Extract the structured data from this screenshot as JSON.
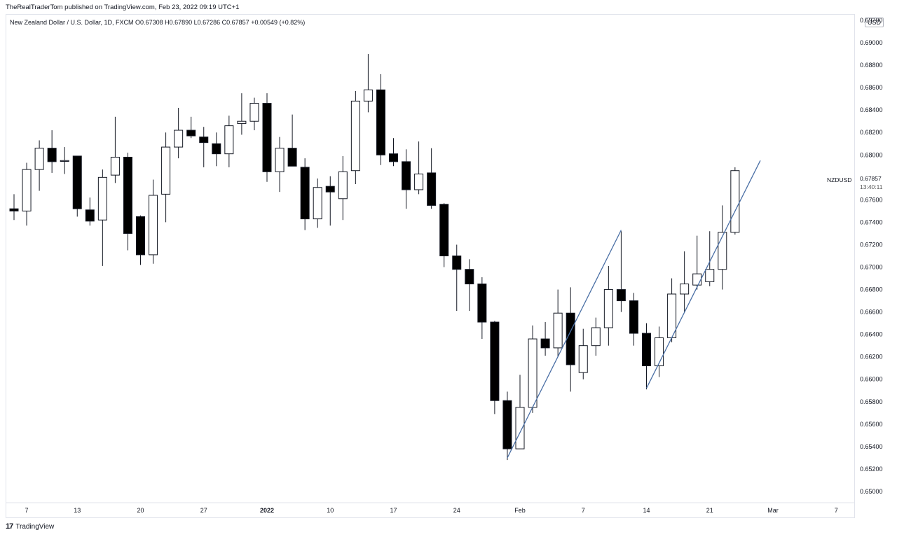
{
  "header": {
    "publisher": "TheRealTraderTom published on TradingView.com, Feb 23, 2022 09:19 UTC+1"
  },
  "legend": {
    "text": "New Zealand Dollar / U.S. Dollar, 1D, FXCM  O0.67308  H0.67890  L0.67286  C0.67857  +0.00549 (+0.82%)"
  },
  "price_axis": {
    "currency": "USD",
    "symbol": "NZDUSD",
    "last_price": "0.67857",
    "countdown": "13:40:11"
  },
  "footer": {
    "brand": "TradingView",
    "mark": "17"
  },
  "colors": {
    "up_fill": "#ffffff",
    "down_fill": "#000000",
    "wick": "#131722",
    "trendline": "#4a6fa5"
  },
  "chart_data": {
    "type": "candlestick",
    "symbol": "NZDUSD",
    "interval": "1D",
    "ylim": [
      0.649,
      0.6925
    ],
    "y_ticks": [
      "0.69200",
      "0.69000",
      "0.68800",
      "0.68600",
      "0.68400",
      "0.68200",
      "0.68000",
      "0.67600",
      "0.67400",
      "0.67200",
      "0.67000",
      "0.66800",
      "0.66600",
      "0.66400",
      "0.66200",
      "0.66000",
      "0.65800",
      "0.65600",
      "0.65400",
      "0.65200",
      "0.65000"
    ],
    "x_ticks": [
      {
        "label": "7",
        "date": "2021-12-07"
      },
      {
        "label": "13",
        "date": "2021-12-13"
      },
      {
        "label": "20",
        "date": "2021-12-20"
      },
      {
        "label": "27",
        "date": "2021-12-27"
      },
      {
        "label": "2022",
        "date": "2022-01-03",
        "bold": true
      },
      {
        "label": "10",
        "date": "2022-01-10"
      },
      {
        "label": "17",
        "date": "2022-01-17"
      },
      {
        "label": "24",
        "date": "2022-01-24"
      },
      {
        "label": "Feb",
        "date": "2022-01-31"
      },
      {
        "label": "7",
        "date": "2022-02-07"
      },
      {
        "label": "14",
        "date": "2022-02-14"
      },
      {
        "label": "21",
        "date": "2022-02-21"
      },
      {
        "label": "Mar",
        "date": "2022-02-28"
      },
      {
        "label": "7",
        "date": "2022-03-07"
      }
    ],
    "candles": [
      {
        "date": "2021-12-06",
        "o": 0.6752,
        "h": 0.6765,
        "l": 0.6742,
        "c": 0.675
      },
      {
        "date": "2021-12-07",
        "o": 0.675,
        "h": 0.6793,
        "l": 0.6737,
        "c": 0.6787
      },
      {
        "date": "2021-12-08",
        "o": 0.6787,
        "h": 0.6813,
        "l": 0.6768,
        "c": 0.6806
      },
      {
        "date": "2021-12-09",
        "o": 0.6806,
        "h": 0.6822,
        "l": 0.6784,
        "c": 0.6794
      },
      {
        "date": "2021-12-10",
        "o": 0.6795,
        "h": 0.6807,
        "l": 0.6783,
        "c": 0.6795
      },
      {
        "date": "2021-12-13",
        "o": 0.6799,
        "h": 0.6799,
        "l": 0.6745,
        "c": 0.6752
      },
      {
        "date": "2021-12-14",
        "o": 0.6751,
        "h": 0.6762,
        "l": 0.6737,
        "c": 0.6741
      },
      {
        "date": "2021-12-15",
        "o": 0.6742,
        "h": 0.6787,
        "l": 0.6701,
        "c": 0.678
      },
      {
        "date": "2021-12-16",
        "o": 0.6782,
        "h": 0.6834,
        "l": 0.6775,
        "c": 0.6798
      },
      {
        "date": "2021-12-17",
        "o": 0.6798,
        "h": 0.6802,
        "l": 0.6715,
        "c": 0.673
      },
      {
        "date": "2021-12-20",
        "o": 0.6745,
        "h": 0.6746,
        "l": 0.6702,
        "c": 0.6711
      },
      {
        "date": "2021-12-21",
        "o": 0.6711,
        "h": 0.6778,
        "l": 0.6703,
        "c": 0.6764
      },
      {
        "date": "2021-12-22",
        "o": 0.6765,
        "h": 0.682,
        "l": 0.674,
        "c": 0.6807
      },
      {
        "date": "2021-12-23",
        "o": 0.6807,
        "h": 0.6842,
        "l": 0.6797,
        "c": 0.6822
      },
      {
        "date": "2021-12-24",
        "o": 0.6822,
        "h": 0.6834,
        "l": 0.6815,
        "c": 0.6817
      },
      {
        "date": "2021-12-27",
        "o": 0.6816,
        "h": 0.6825,
        "l": 0.6789,
        "c": 0.6811
      },
      {
        "date": "2021-12-28",
        "o": 0.681,
        "h": 0.682,
        "l": 0.679,
        "c": 0.6801
      },
      {
        "date": "2021-12-29",
        "o": 0.6801,
        "h": 0.6835,
        "l": 0.6789,
        "c": 0.6826
      },
      {
        "date": "2021-12-30",
        "o": 0.6828,
        "h": 0.6855,
        "l": 0.6818,
        "c": 0.683
      },
      {
        "date": "2021-12-31",
        "o": 0.683,
        "h": 0.6851,
        "l": 0.6822,
        "c": 0.6846
      },
      {
        "date": "2022-01-03",
        "o": 0.6846,
        "h": 0.6855,
        "l": 0.6776,
        "c": 0.6785
      },
      {
        "date": "2022-01-04",
        "o": 0.6785,
        "h": 0.6816,
        "l": 0.6767,
        "c": 0.6806
      },
      {
        "date": "2022-01-05",
        "o": 0.6806,
        "h": 0.6836,
        "l": 0.679,
        "c": 0.679
      },
      {
        "date": "2022-01-06",
        "o": 0.6789,
        "h": 0.6797,
        "l": 0.6733,
        "c": 0.6743
      },
      {
        "date": "2022-01-07",
        "o": 0.6743,
        "h": 0.6779,
        "l": 0.6735,
        "c": 0.6771
      },
      {
        "date": "2022-01-10",
        "o": 0.6772,
        "h": 0.6781,
        "l": 0.6737,
        "c": 0.6767
      },
      {
        "date": "2022-01-11",
        "o": 0.6761,
        "h": 0.6799,
        "l": 0.6742,
        "c": 0.6785
      },
      {
        "date": "2022-01-12",
        "o": 0.6786,
        "h": 0.6857,
        "l": 0.6774,
        "c": 0.6848
      },
      {
        "date": "2022-01-13",
        "o": 0.6848,
        "h": 0.689,
        "l": 0.6838,
        "c": 0.6858
      },
      {
        "date": "2022-01-14",
        "o": 0.6858,
        "h": 0.6872,
        "l": 0.6791,
        "c": 0.68
      },
      {
        "date": "2022-01-17",
        "o": 0.6801,
        "h": 0.6815,
        "l": 0.679,
        "c": 0.6794
      },
      {
        "date": "2022-01-18",
        "o": 0.6794,
        "h": 0.6805,
        "l": 0.6752,
        "c": 0.6769
      },
      {
        "date": "2022-01-19",
        "o": 0.6769,
        "h": 0.6812,
        "l": 0.6765,
        "c": 0.6783
      },
      {
        "date": "2022-01-20",
        "o": 0.6784,
        "h": 0.6806,
        "l": 0.6752,
        "c": 0.6755
      },
      {
        "date": "2022-01-21",
        "o": 0.6756,
        "h": 0.6757,
        "l": 0.67,
        "c": 0.671
      },
      {
        "date": "2022-01-24",
        "o": 0.671,
        "h": 0.672,
        "l": 0.6661,
        "c": 0.6698
      },
      {
        "date": "2022-01-25",
        "o": 0.6698,
        "h": 0.6707,
        "l": 0.6661,
        "c": 0.6685
      },
      {
        "date": "2022-01-26",
        "o": 0.6685,
        "h": 0.6691,
        "l": 0.6636,
        "c": 0.6651
      },
      {
        "date": "2022-01-27",
        "o": 0.6651,
        "h": 0.6652,
        "l": 0.6569,
        "c": 0.6581
      },
      {
        "date": "2022-01-28",
        "o": 0.6581,
        "h": 0.6589,
        "l": 0.6528,
        "c": 0.6538
      },
      {
        "date": "2022-01-31",
        "o": 0.6538,
        "h": 0.6604,
        "l": 0.6538,
        "c": 0.6575
      },
      {
        "date": "2022-02-01",
        "o": 0.6575,
        "h": 0.6648,
        "l": 0.657,
        "c": 0.6636
      },
      {
        "date": "2022-02-02",
        "o": 0.6636,
        "h": 0.6651,
        "l": 0.6621,
        "c": 0.6628
      },
      {
        "date": "2022-02-03",
        "o": 0.6628,
        "h": 0.668,
        "l": 0.662,
        "c": 0.6659
      },
      {
        "date": "2022-02-04",
        "o": 0.6659,
        "h": 0.6682,
        "l": 0.6589,
        "c": 0.6613
      },
      {
        "date": "2022-02-07",
        "o": 0.6606,
        "h": 0.6645,
        "l": 0.66,
        "c": 0.663
      },
      {
        "date": "2022-02-08",
        "o": 0.663,
        "h": 0.6655,
        "l": 0.6621,
        "c": 0.6646
      },
      {
        "date": "2022-02-09",
        "o": 0.6646,
        "h": 0.6701,
        "l": 0.663,
        "c": 0.668
      },
      {
        "date": "2022-02-10",
        "o": 0.668,
        "h": 0.6732,
        "l": 0.666,
        "c": 0.667
      },
      {
        "date": "2022-02-11",
        "o": 0.667,
        "h": 0.6677,
        "l": 0.663,
        "c": 0.6641
      },
      {
        "date": "2022-02-14",
        "o": 0.6641,
        "h": 0.665,
        "l": 0.6591,
        "c": 0.6612
      },
      {
        "date": "2022-02-15",
        "o": 0.6612,
        "h": 0.6647,
        "l": 0.6602,
        "c": 0.6637
      },
      {
        "date": "2022-02-16",
        "o": 0.6637,
        "h": 0.669,
        "l": 0.6633,
        "c": 0.6676
      },
      {
        "date": "2022-02-17",
        "o": 0.6676,
        "h": 0.6714,
        "l": 0.666,
        "c": 0.6685
      },
      {
        "date": "2022-02-18",
        "o": 0.6684,
        "h": 0.6728,
        "l": 0.668,
        "c": 0.6694
      },
      {
        "date": "2022-02-21",
        "o": 0.6687,
        "h": 0.6732,
        "l": 0.6683,
        "c": 0.6698
      },
      {
        "date": "2022-02-22",
        "o": 0.6698,
        "h": 0.6755,
        "l": 0.668,
        "c": 0.6731
      },
      {
        "date": "2022-02-23",
        "o": 0.6731,
        "h": 0.6789,
        "l": 0.6729,
        "c": 0.6786
      }
    ],
    "trendlines": [
      {
        "from": {
          "date": "2022-01-28",
          "price": 0.653
        },
        "to": {
          "date": "2022-02-10",
          "price": 0.6733
        }
      },
      {
        "from": {
          "date": "2022-02-14",
          "price": 0.6592
        },
        "to": {
          "date": "2022-02-25",
          "price": 0.6795
        }
      }
    ]
  }
}
